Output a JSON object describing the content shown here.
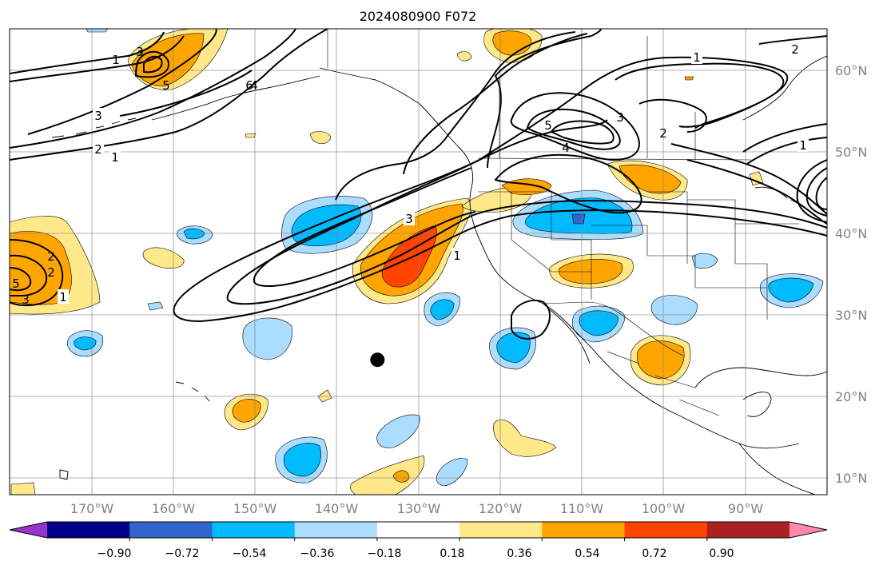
{
  "title": "2024080900 F072",
  "lon_labels": [
    "170°W",
    "160°W",
    "150°W",
    "140°W",
    "130°W",
    "120°W",
    "110°W",
    "100°W",
    "90°W"
  ],
  "lat_labels": [
    "60°N",
    "50°N",
    "40°N",
    "30°N",
    "20°N",
    "10°N"
  ],
  "extent": {
    "lon_min": -180,
    "lon_max": -80,
    "lat_min": 8,
    "lat_max": 65
  },
  "colorbar": {
    "colors": [
      "#9933cc",
      "#000088",
      "#3366cc",
      "#00bbff",
      "#aaddff",
      "#ffffff",
      "#ffe88a",
      "#ffa500",
      "#ff4400",
      "#aa2222",
      "#ff88aa"
    ],
    "tick_labels": [
      "−0.90",
      "−0.72",
      "−0.54",
      "−0.36",
      "−0.18",
      "0.18",
      "0.36",
      "0.54",
      "0.72",
      "0.90"
    ],
    "extend": "both"
  },
  "contour_labels": [
    "1",
    "2",
    "3",
    "4",
    "5",
    "6",
    "1",
    "2",
    "3",
    "1",
    "2",
    "3",
    "4",
    "5",
    "1",
    "3",
    "1",
    "2",
    "1",
    "3",
    "2",
    "5"
  ],
  "marker": {
    "lon": -135,
    "lat": 24.5,
    "color": "#000000"
  }
}
